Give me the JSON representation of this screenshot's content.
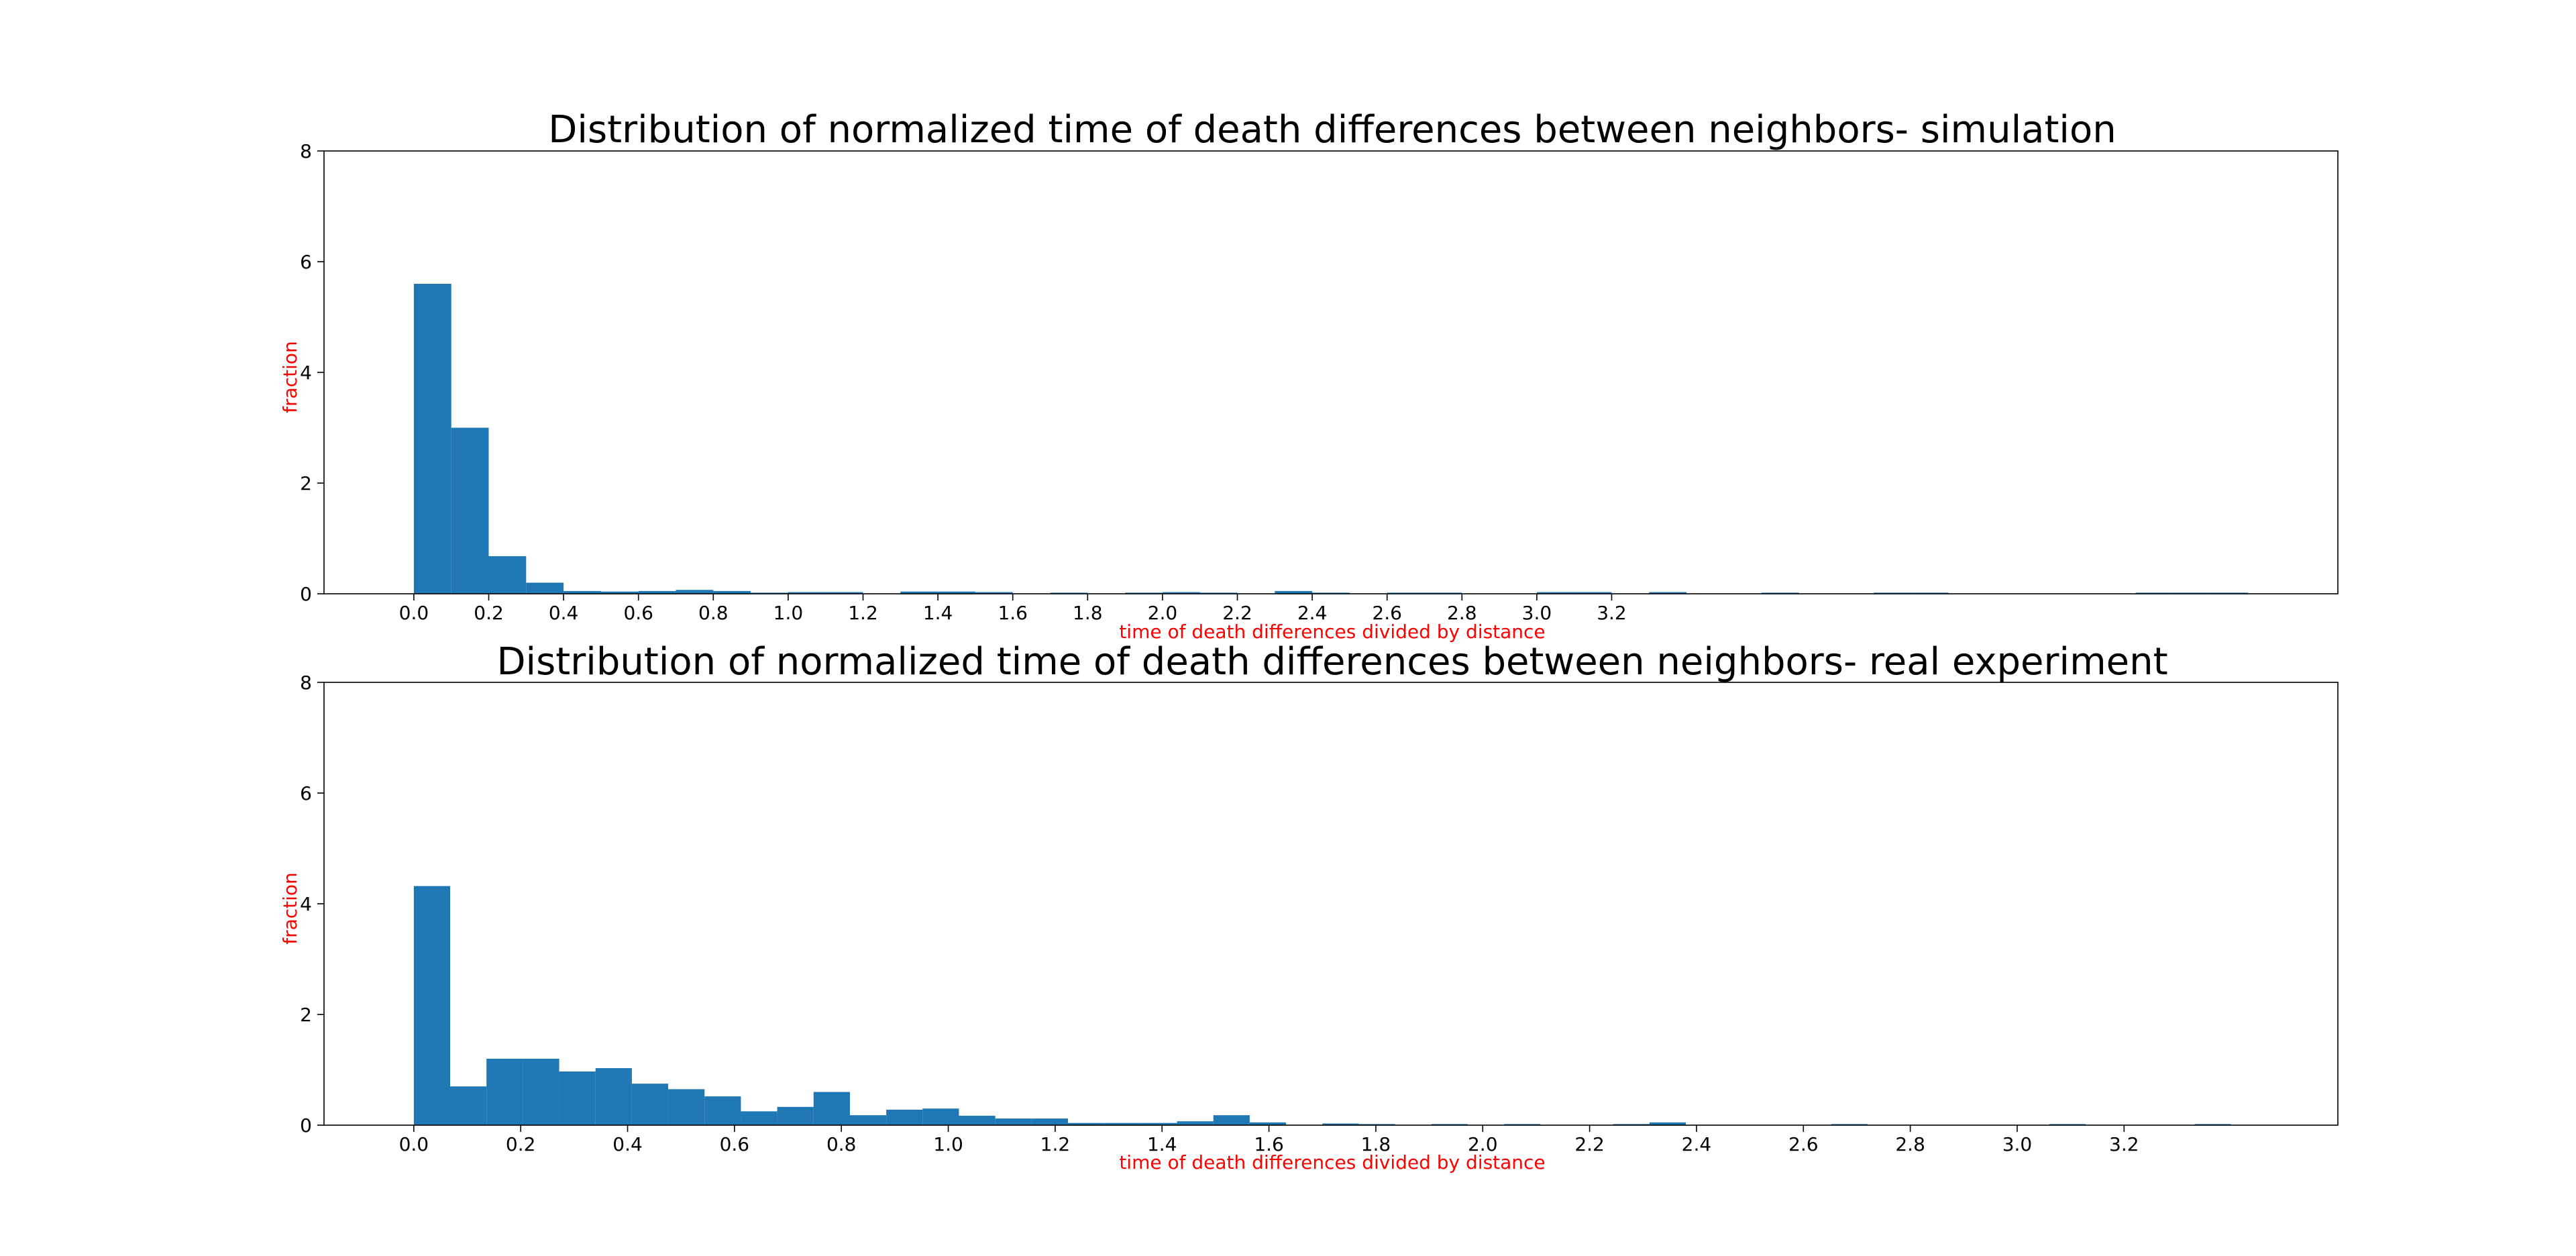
{
  "chart_data": [
    {
      "type": "bar",
      "title": "Distribution of normalized time of death differences between neighbors- simulation",
      "xlabel": "time of death differences divided by distance",
      "ylabel": "fraction",
      "xlim": [
        -0.24,
        5.14
      ],
      "ylim": [
        0,
        8
      ],
      "xticks": [
        "0.0",
        "0.2",
        "0.4",
        "0.6",
        "0.8",
        "1.0",
        "1.2",
        "1.4",
        "1.6",
        "1.8",
        "2.0",
        "2.2",
        "2.4",
        "2.6",
        "2.8",
        "3.0",
        "3.2"
      ],
      "yticks": [
        "0",
        "2",
        "4",
        "6",
        "8"
      ],
      "grid": false,
      "color": "#1f77b4",
      "bin_width": 0.1,
      "bins_start": [
        0.0,
        0.1,
        0.2,
        0.3,
        0.4,
        0.5,
        0.6,
        0.7,
        0.8,
        0.9,
        1.0,
        1.1,
        1.2,
        1.3,
        1.4,
        1.5,
        1.6,
        1.7,
        1.8,
        1.9,
        2.0,
        2.1,
        2.2,
        2.3,
        2.4,
        2.5,
        2.6,
        2.7,
        2.8,
        2.9,
        3.0,
        3.1,
        3.2,
        3.3,
        3.4,
        3.5,
        3.6,
        3.7,
        3.8,
        3.9,
        4.0,
        4.1,
        4.2,
        4.3,
        4.4,
        4.5,
        4.6,
        4.7,
        4.8,
        4.9
      ],
      "values": [
        5.6,
        3.0,
        0.68,
        0.2,
        0.05,
        0.04,
        0.05,
        0.07,
        0.05,
        0.02,
        0.03,
        0.03,
        0.0,
        0.04,
        0.04,
        0.03,
        0.0,
        0.02,
        0.0,
        0.02,
        0.03,
        0.02,
        0.0,
        0.05,
        0.02,
        0.0,
        0.02,
        0.02,
        0.0,
        0.0,
        0.03,
        0.03,
        0.0,
        0.03,
        0.0,
        0.0,
        0.02,
        0.0,
        0.0,
        0.02,
        0.02,
        0.0,
        0.0,
        0.0,
        0.0,
        0.0,
        0.02,
        0.02,
        0.02,
        0.0
      ]
    },
    {
      "type": "bar",
      "title": "Distribution of normalized time of death differences between neighbors- real experiment",
      "xlabel": "time of death differences divided by distance",
      "ylabel": "fraction",
      "xlim": [
        -0.168,
        3.6
      ],
      "ylim": [
        0,
        8
      ],
      "xticks": [
        "0.0",
        "0.2",
        "0.4",
        "0.6",
        "0.8",
        "1.0",
        "1.2",
        "1.4",
        "1.6",
        "1.8",
        "2.0",
        "2.2",
        "2.4",
        "2.6",
        "2.8",
        "3.0",
        "3.2"
      ],
      "yticks": [
        "0",
        "2",
        "4",
        "6",
        "8"
      ],
      "grid": false,
      "color": "#1f77b4",
      "bin_width": 0.068,
      "bins_start": [
        0.0,
        0.068,
        0.136,
        0.204,
        0.272,
        0.34,
        0.408,
        0.476,
        0.544,
        0.612,
        0.68,
        0.748,
        0.816,
        0.884,
        0.952,
        1.02,
        1.088,
        1.156,
        1.224,
        1.292,
        1.36,
        1.428,
        1.496,
        1.564,
        1.632,
        1.7,
        1.768,
        1.836,
        1.904,
        1.972,
        2.04,
        2.108,
        2.176,
        2.244,
        2.312,
        2.38,
        2.448,
        2.516,
        2.584,
        2.652,
        2.72,
        2.788,
        2.856,
        2.924,
        2.992,
        3.06,
        3.128,
        3.196,
        3.264,
        3.332
      ],
      "values": [
        4.32,
        0.7,
        1.2,
        1.2,
        0.97,
        1.03,
        0.75,
        0.65,
        0.52,
        0.25,
        0.33,
        0.6,
        0.18,
        0.28,
        0.3,
        0.17,
        0.12,
        0.12,
        0.04,
        0.04,
        0.04,
        0.07,
        0.18,
        0.05,
        0.0,
        0.03,
        0.02,
        0.0,
        0.02,
        0.0,
        0.02,
        0.0,
        0.0,
        0.02,
        0.05,
        0.0,
        0.0,
        0.0,
        0.0,
        0.02,
        0.0,
        0.0,
        0.0,
        0.0,
        0.0,
        0.02,
        0.0,
        0.0,
        0.0,
        0.02
      ]
    }
  ]
}
